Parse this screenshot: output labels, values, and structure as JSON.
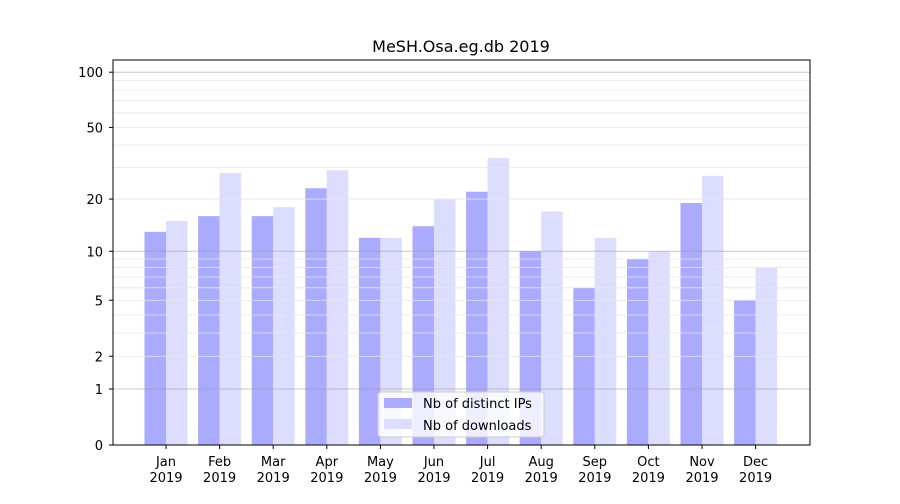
{
  "chart_data": {
    "type": "bar",
    "title": "MeSH.Osa.eg.db 2019",
    "xlabel": "",
    "ylabel": "",
    "yscale": "log10(1+y)",
    "ylim": [
      0,
      110
    ],
    "yticks": [
      0,
      1,
      2,
      5,
      10,
      20,
      50,
      100
    ],
    "categories": [
      [
        "Jan",
        "2019"
      ],
      [
        "Feb",
        "2019"
      ],
      [
        "Mar",
        "2019"
      ],
      [
        "Apr",
        "2019"
      ],
      [
        "May",
        "2019"
      ],
      [
        "Jun",
        "2019"
      ],
      [
        "Jul",
        "2019"
      ],
      [
        "Aug",
        "2019"
      ],
      [
        "Sep",
        "2019"
      ],
      [
        "Oct",
        "2019"
      ],
      [
        "Nov",
        "2019"
      ],
      [
        "Dec",
        "2019"
      ]
    ],
    "series": [
      {
        "name": "Nb of distinct IPs",
        "color": "#aaaaff",
        "values": [
          13,
          16,
          16,
          23,
          12,
          14,
          22,
          10,
          6,
          9,
          19,
          5
        ]
      },
      {
        "name": "Nb of downloads",
        "color": "#ddddff",
        "values": [
          15,
          28,
          18,
          29,
          12,
          20,
          34,
          17,
          12,
          10,
          27,
          8
        ]
      }
    ],
    "grid": true,
    "legend": "bottom-center"
  }
}
